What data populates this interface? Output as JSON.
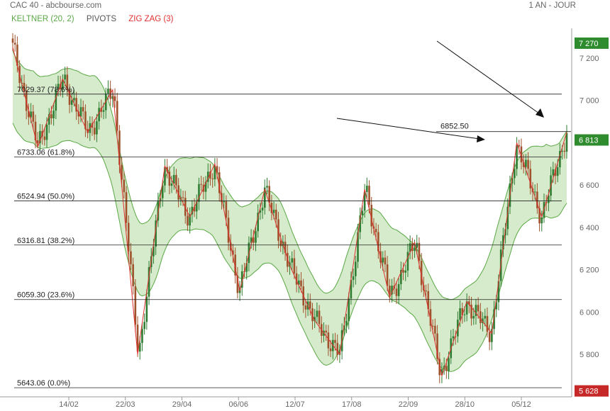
{
  "header": {
    "title": "CAC 40 - abcbourse.com",
    "period": "1 AN - JOUR",
    "legend": [
      {
        "label": "KELTNER (20, 2)",
        "color": "#5aa845"
      },
      {
        "label": "PIVOTS",
        "color": "#555555"
      },
      {
        "label": "ZIG ZAG (3)",
        "color": "#e03030"
      }
    ]
  },
  "colors": {
    "up": "#2e7d32",
    "down": "#a0522d",
    "band_fill": "#cfe8c2",
    "band_line": "#5aa845",
    "zigzag": "#e03030",
    "level_badge": "#2e8b2e",
    "low_badge": "#c62828"
  },
  "chart_data": {
    "type": "candlestick",
    "ylim": [
      5600,
      7340
    ],
    "yticks": [
      "7 200",
      "7 000",
      "6 800",
      "6 600",
      "6 400",
      "6 200",
      "6 000",
      "5 800"
    ],
    "ytick_values": [
      7200,
      7000,
      6800,
      6600,
      6400,
      6200,
      6000,
      5800
    ],
    "xticks": [
      "14/02",
      "22/03",
      "29/04",
      "06/06",
      "12/07",
      "17/08",
      "22/09",
      "28/10",
      "05/12"
    ],
    "fib_levels": [
      {
        "label": "7029.37  (78.6%)",
        "value": 7029.37
      },
      {
        "label": "6733.06  (61.8%)",
        "value": 6733.06
      },
      {
        "label": "6524.94  (50.0%)",
        "value": 6524.94
      },
      {
        "label": "6316.81  (38.2%)",
        "value": 6316.81
      },
      {
        "label": "6059.30  (23.6%)",
        "value": 6059.3
      },
      {
        "label": "5643.06  (0.0%)",
        "value": 5643.06
      }
    ],
    "resistance": {
      "label": "6852.50",
      "value": 6852.5
    },
    "badges": [
      {
        "label": "7 270",
        "value": 7270
      },
      {
        "label": "6 813",
        "value": 6813
      },
      {
        "label": "5 628",
        "value": 5628
      }
    ],
    "zigzag": [
      7250,
      6780,
      7100,
      6850,
      7050,
      5800,
      6690,
      6450,
      6700,
      6100,
      6580,
      6220,
      5960,
      5800,
      6580,
      6070,
      6330,
      5700,
      6050,
      5900,
      6800,
      6450,
      6850
    ]
  }
}
